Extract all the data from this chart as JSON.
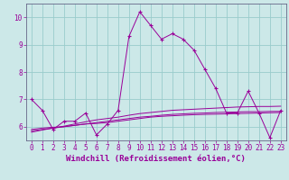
{
  "xlabel": "Windchill (Refroidissement éolien,°C)",
  "bg_color": "#cce8e8",
  "grid_color": "#99cccc",
  "line_color": "#990099",
  "x": [
    0,
    1,
    2,
    3,
    4,
    5,
    6,
    7,
    8,
    9,
    10,
    11,
    12,
    13,
    14,
    15,
    16,
    17,
    18,
    19,
    20,
    21,
    22,
    23
  ],
  "y_main": [
    7.0,
    6.6,
    5.9,
    6.2,
    6.2,
    6.5,
    5.7,
    6.1,
    6.6,
    9.3,
    10.2,
    9.7,
    9.2,
    9.4,
    9.2,
    8.8,
    8.1,
    7.4,
    6.5,
    6.5,
    7.3,
    6.5,
    5.6,
    6.6
  ],
  "y_line1": [
    5.9,
    5.95,
    5.98,
    6.0,
    6.05,
    6.1,
    6.12,
    6.15,
    6.2,
    6.25,
    6.3,
    6.35,
    6.38,
    6.4,
    6.42,
    6.44,
    6.45,
    6.46,
    6.47,
    6.48,
    6.49,
    6.5,
    6.51,
    6.52
  ],
  "y_line2": [
    5.85,
    5.9,
    5.95,
    6.0,
    6.05,
    6.1,
    6.15,
    6.2,
    6.25,
    6.3,
    6.35,
    6.38,
    6.42,
    6.45,
    6.47,
    6.49,
    6.5,
    6.52,
    6.53,
    6.54,
    6.55,
    6.55,
    6.56,
    6.56
  ],
  "y_line3": [
    5.8,
    5.88,
    5.95,
    6.02,
    6.1,
    6.18,
    6.25,
    6.3,
    6.35,
    6.42,
    6.48,
    6.52,
    6.56,
    6.6,
    6.62,
    6.64,
    6.66,
    6.68,
    6.7,
    6.72,
    6.73,
    6.74,
    6.74,
    6.75
  ],
  "ylim": [
    5.5,
    10.5
  ],
  "xlim": [
    -0.5,
    23.5
  ],
  "yticks": [
    6,
    7,
    8,
    9,
    10
  ],
  "xticks": [
    0,
    1,
    2,
    3,
    4,
    5,
    6,
    7,
    8,
    9,
    10,
    11,
    12,
    13,
    14,
    15,
    16,
    17,
    18,
    19,
    20,
    21,
    22,
    23
  ],
  "tick_fontsize": 5.5,
  "label_fontsize": 6.5
}
